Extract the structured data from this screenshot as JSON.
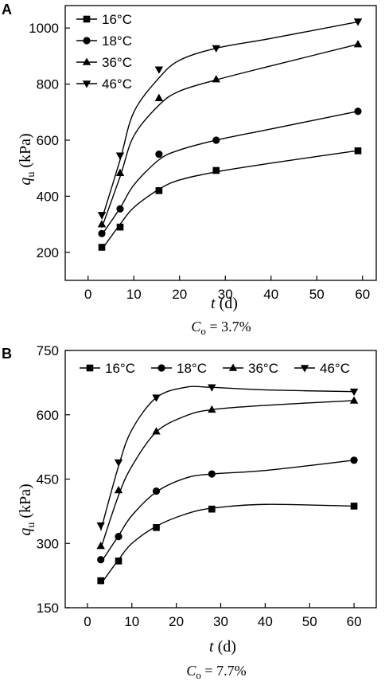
{
  "chart_data": [
    {
      "panel": "A",
      "type": "scatter",
      "title": "",
      "xlabel_symbol": "t",
      "xlabel_unit": "(d)",
      "ylabel_symbol": "q",
      "ylabel_sub": "u",
      "ylabel_unit": "(kPa)",
      "caption_symbol": "C",
      "caption_sub": "o",
      "caption_value": " = 3.7%",
      "xlim": [
        -5,
        63
      ],
      "ylim": [
        100,
        1080
      ],
      "xticks": [
        0,
        10,
        20,
        30,
        40,
        50,
        60
      ],
      "yticks": [
        200,
        400,
        600,
        800,
        1000
      ],
      "legend_position": "top-left",
      "x": [
        3,
        7,
        15.5,
        28,
        59
      ],
      "series": [
        {
          "name": "16°C",
          "marker": "square",
          "values": [
            218,
            290,
            420,
            492,
            562
          ]
        },
        {
          "name": "18°C",
          "marker": "circle",
          "values": [
            267,
            355,
            550,
            600,
            703
          ]
        },
        {
          "name": "36°C",
          "marker": "triangle-up",
          "values": [
            300,
            483,
            750,
            817,
            942
          ]
        },
        {
          "name": "46°C",
          "marker": "triangle-down",
          "values": [
            333,
            545,
            852,
            928,
            1023
          ]
        }
      ],
      "curves": [
        {
          "series": "16°C",
          "x": [
            3,
            7,
            10,
            15.5,
            20,
            28,
            40,
            59
          ],
          "y": [
            210,
            300,
            360,
            425,
            458,
            487,
            518,
            563
          ]
        },
        {
          "series": "18°C",
          "x": [
            3,
            7,
            10,
            15.5,
            20,
            28,
            40,
            59
          ],
          "y": [
            262,
            358,
            440,
            530,
            565,
            600,
            640,
            703
          ]
        },
        {
          "series": "36°C",
          "x": [
            3,
            7,
            10,
            15.5,
            20,
            28,
            40,
            59
          ],
          "y": [
            288,
            470,
            615,
            725,
            775,
            815,
            865,
            942
          ]
        },
        {
          "series": "46°C",
          "x": [
            3,
            7,
            10,
            15.5,
            20,
            28,
            40,
            59
          ],
          "y": [
            318,
            530,
            700,
            822,
            885,
            928,
            963,
            1022
          ]
        }
      ]
    },
    {
      "panel": "B",
      "type": "scatter",
      "title": "",
      "xlabel_symbol": "t",
      "xlabel_unit": "(d)",
      "ylabel_symbol": "q",
      "ylabel_sub": "u",
      "ylabel_unit": "(kPa)",
      "caption_symbol": "C",
      "caption_sub": "o",
      "caption_value": " = 7.7%",
      "xlim": [
        -5,
        65
      ],
      "ylim": [
        150,
        750
      ],
      "xticks": [
        0,
        10,
        20,
        30,
        40,
        50,
        60
      ],
      "yticks": [
        150,
        300,
        450,
        600,
        750
      ],
      "legend_position": "top",
      "x": [
        3,
        7,
        15.5,
        28,
        60
      ],
      "series": [
        {
          "name": "16°C",
          "marker": "square",
          "values": [
            213,
            259,
            337,
            380,
            387
          ]
        },
        {
          "name": "18°C",
          "marker": "circle",
          "values": [
            262,
            316,
            422,
            462,
            494
          ]
        },
        {
          "name": "36°C",
          "marker": "triangle-up",
          "values": [
            294,
            424,
            561,
            612,
            633
          ]
        },
        {
          "name": "46°C",
          "marker": "triangle-down",
          "values": [
            342,
            489,
            640,
            664,
            654
          ]
        }
      ],
      "curves": [
        {
          "series": "16°C",
          "x": [
            3,
            7,
            10,
            15.5,
            22,
            28,
            40,
            60
          ],
          "y": [
            205,
            262,
            300,
            340,
            368,
            382,
            391,
            387
          ]
        },
        {
          "series": "18°C",
          "x": [
            3,
            7,
            10,
            15.5,
            22,
            28,
            40,
            60
          ],
          "y": [
            255,
            318,
            365,
            420,
            452,
            462,
            470,
            494
          ]
        },
        {
          "series": "36°C",
          "x": [
            3,
            7,
            10,
            15.5,
            22,
            28,
            40,
            60
          ],
          "y": [
            288,
            412,
            480,
            560,
            597,
            612,
            622,
            633
          ]
        },
        {
          "series": "46°C",
          "x": [
            3,
            7,
            10,
            15.5,
            22,
            28,
            40,
            60
          ],
          "y": [
            330,
            480,
            565,
            640,
            664,
            664,
            658,
            654
          ]
        }
      ]
    }
  ]
}
